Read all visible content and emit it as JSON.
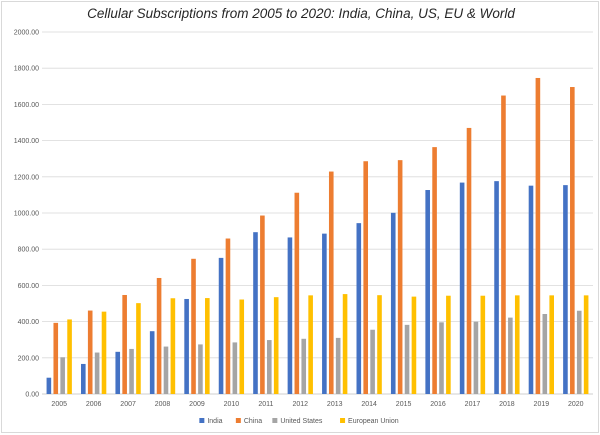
{
  "chart_data": {
    "type": "bar",
    "title": "Cellular Subscriptions from 2005 to 2020: India, China, US, EU & World",
    "xlabel": "",
    "ylabel": "",
    "ylim": [
      0,
      2000
    ],
    "yticks": [
      "0.00",
      "200.00",
      "400.00",
      "600.00",
      "800.00",
      "1000.00",
      "1200.00",
      "1400.00",
      "1600.00",
      "1800.00",
      "2000.00"
    ],
    "grid": true,
    "legend_position": "bottom",
    "categories": [
      "2005",
      "2006",
      "2007",
      "2008",
      "2009",
      "2010",
      "2011",
      "2012",
      "2013",
      "2014",
      "2015",
      "2016",
      "2017",
      "2018",
      "2019",
      "2020"
    ],
    "series": [
      {
        "name": "India",
        "color": "#4472c4",
        "values": [
          90,
          166,
          233,
          347,
          525,
          752,
          894,
          865,
          886,
          944,
          1001,
          1127,
          1168,
          1176,
          1151,
          1154
        ]
      },
      {
        "name": "China",
        "color": "#ed7d31",
        "values": [
          393,
          461,
          547,
          641,
          747,
          859,
          986,
          1112,
          1229,
          1286,
          1292,
          1364,
          1470,
          1649,
          1746,
          1696
        ]
      },
      {
        "name": "United States",
        "color": "#a5a5a5",
        "values": [
          203,
          229,
          249,
          262,
          274,
          285,
          298,
          305,
          310,
          355,
          382,
          396,
          400,
          422,
          442,
          460
        ]
      },
      {
        "name": "European Union",
        "color": "#ffc000",
        "values": [
          412,
          455,
          502,
          529,
          530,
          522,
          535,
          545,
          552,
          546,
          538,
          543,
          543,
          545,
          545,
          545
        ]
      }
    ]
  }
}
